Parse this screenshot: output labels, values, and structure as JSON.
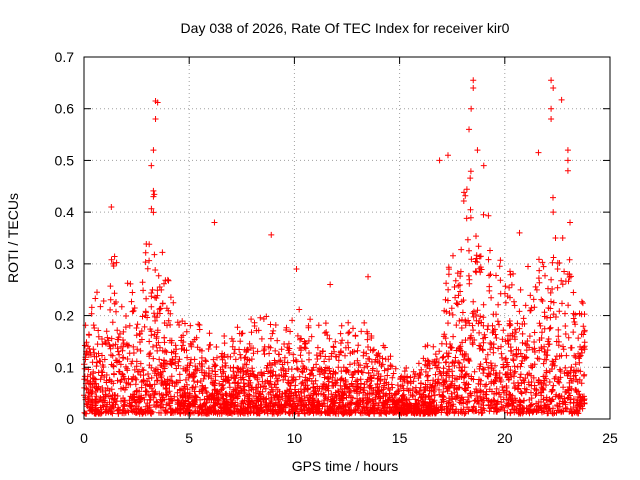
{
  "chart_data": {
    "type": "scatter",
    "title": "Day 038 of 2026, Rate Of TEC Index for receiver kir0",
    "xlabel": "GPS time / hours",
    "ylabel": "ROTI / TECUs",
    "xlim": [
      0,
      25
    ],
    "ylim": [
      0,
      0.7
    ],
    "xticks": [
      0,
      5,
      10,
      15,
      20,
      25
    ],
    "yticks": [
      0,
      0.1,
      0.2,
      0.3,
      0.4,
      0.5,
      0.6,
      0.7
    ],
    "xtick_labels": [
      "0",
      "5",
      "10",
      "15",
      "20",
      "25"
    ],
    "ytick_labels": [
      "0",
      "0.1",
      "0.2",
      "0.3",
      "0.4",
      "0.5",
      "0.6",
      "0.7"
    ],
    "grid": true,
    "marker": "+",
    "marker_color": "#ff0000",
    "series": [
      {
        "name": "ROTI",
        "envelope": {
          "description": "approximate upper envelope of the dense point cloud",
          "x": [
            0,
            0.5,
            1,
            1.5,
            2,
            2.5,
            3,
            3.3,
            3.5,
            4,
            4.5,
            5,
            6,
            7,
            8,
            9,
            10,
            11,
            12,
            13,
            14,
            15,
            16,
            16.5,
            17,
            17.5,
            18,
            18.5,
            19,
            19.5,
            20,
            20.5,
            21,
            21.5,
            22,
            22.3,
            22.5,
            23,
            23.3,
            23.8
          ],
          "y": [
            0.22,
            0.25,
            0.3,
            0.35,
            0.3,
            0.25,
            0.35,
            0.5,
            0.45,
            0.3,
            0.22,
            0.2,
            0.18,
            0.17,
            0.2,
            0.2,
            0.22,
            0.2,
            0.18,
            0.2,
            0.16,
            0.1,
            0.12,
            0.18,
            0.22,
            0.35,
            0.45,
            0.5,
            0.45,
            0.35,
            0.28,
            0.3,
            0.32,
            0.3,
            0.35,
            0.45,
            0.35,
            0.35,
            0.3,
            0.25
          ],
          "floor": 0.01
        },
        "outliers": [
          {
            "x": 3.4,
            "y": 0.615
          },
          {
            "x": 3.5,
            "y": 0.612
          },
          {
            "x": 3.4,
            "y": 0.58
          },
          {
            "x": 3.3,
            "y": 0.52
          },
          {
            "x": 3.2,
            "y": 0.49
          },
          {
            "x": 3.3,
            "y": 0.43
          },
          {
            "x": 1.3,
            "y": 0.41
          },
          {
            "x": 6.2,
            "y": 0.38
          },
          {
            "x": 8.9,
            "y": 0.356
          },
          {
            "x": 10.1,
            "y": 0.29
          },
          {
            "x": 11.7,
            "y": 0.26
          },
          {
            "x": 13.5,
            "y": 0.275
          },
          {
            "x": 16.9,
            "y": 0.5
          },
          {
            "x": 17.3,
            "y": 0.51
          },
          {
            "x": 18.5,
            "y": 0.655
          },
          {
            "x": 18.5,
            "y": 0.64
          },
          {
            "x": 18.4,
            "y": 0.6
          },
          {
            "x": 18.3,
            "y": 0.56
          },
          {
            "x": 18.7,
            "y": 0.52
          },
          {
            "x": 19.0,
            "y": 0.49
          },
          {
            "x": 20.7,
            "y": 0.36
          },
          {
            "x": 21.6,
            "y": 0.515
          },
          {
            "x": 22.2,
            "y": 0.655
          },
          {
            "x": 22.3,
            "y": 0.64
          },
          {
            "x": 22.2,
            "y": 0.6
          },
          {
            "x": 22.2,
            "y": 0.58
          },
          {
            "x": 22.3,
            "y": 0.4
          },
          {
            "x": 22.7,
            "y": 0.617
          },
          {
            "x": 23.0,
            "y": 0.52
          },
          {
            "x": 23.0,
            "y": 0.5
          },
          {
            "x": 23.0,
            "y": 0.48
          },
          {
            "x": 23.1,
            "y": 0.38
          }
        ]
      }
    ]
  }
}
